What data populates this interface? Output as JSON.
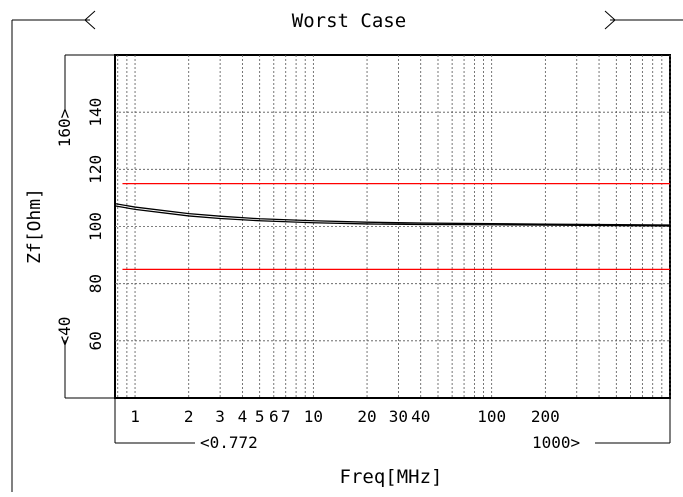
{
  "chart_data": {
    "type": "line",
    "title": "Worst Case",
    "xlabel": "Freq[MHz]",
    "ylabel": "Zf[Ohm]",
    "x_scale": "log",
    "xlim": [
      0.772,
      1000
    ],
    "ylim": [
      40,
      160
    ],
    "grid": true,
    "x_range_labels": {
      "min": "<0.772",
      "max": "1000>"
    },
    "y_range_labels": {
      "min": "<40",
      "max": "160>"
    },
    "x_ticks": [
      1,
      2,
      3,
      4,
      5,
      6,
      7,
      10,
      20,
      30,
      40,
      100,
      200
    ],
    "x_tick_labels": [
      "1",
      "2",
      "3",
      "4",
      "5",
      "6",
      "7",
      "10",
      "20",
      "30",
      "40",
      "100",
      "200"
    ],
    "y_ticks": [
      60,
      80,
      100,
      120,
      140
    ],
    "y_tick_labels": [
      "60",
      "80",
      "100",
      "120",
      "140"
    ],
    "series": [
      {
        "color": "#000000",
        "x": [
          0.772,
          1,
          2,
          3,
          5,
          10,
          20,
          40,
          100,
          200,
          1000
        ],
        "y": [
          108,
          106.8,
          104.5,
          103.6,
          102.7,
          102,
          101.5,
          101.2,
          101,
          100.8,
          100.5
        ]
      },
      {
        "color": "#000000",
        "x": [
          0.772,
          1,
          2,
          3,
          5,
          10,
          20,
          40,
          100,
          200,
          1000
        ],
        "y": [
          107.2,
          106,
          103.7,
          102.8,
          102,
          101.3,
          100.9,
          100.7,
          100.6,
          100.5,
          100.2
        ]
      }
    ],
    "limit_lines": [
      {
        "y": 115,
        "color": "#ff0000",
        "x_start": 0.85
      },
      {
        "y": 85,
        "color": "#ff0000",
        "x_start": 0.85
      }
    ]
  }
}
